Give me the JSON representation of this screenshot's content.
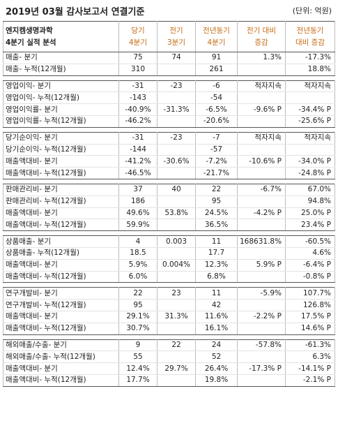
{
  "header": {
    "title": "2019년 03월 감사보고서 연결기준",
    "unit": "(단위: 억원)"
  },
  "columns": [
    {
      "line1": "엔지켐생명과학",
      "line2": "4분기 실적 분석"
    },
    {
      "line1": "당기",
      "line2": "4분기"
    },
    {
      "line1": "전기",
      "line2": "3분기"
    },
    {
      "line1": "전년동기",
      "line2": "4분기"
    },
    {
      "line1": "전기 대비",
      "line2": "증감"
    },
    {
      "line1": "전년동기",
      "line2": "대비 증감"
    }
  ],
  "groups": [
    {
      "rows": [
        {
          "label": "매출- 분기",
          "cur": "75",
          "prev": "74",
          "yoy": "91",
          "qoq": "1.3%",
          "yoyc": "-17.3%"
        },
        {
          "label": "매출- 누적(12개월)",
          "cur": "310",
          "prev": "",
          "yoy": "261",
          "qoq": "",
          "yoyc": "18.8%"
        }
      ]
    },
    {
      "rows": [
        {
          "label": "영업이익- 분기",
          "cur": "-31",
          "prev": "-23",
          "yoy": "-6",
          "qoq": "적자지속",
          "yoyc": "적자지속"
        },
        {
          "label": "영업이익- 누적(12개월)",
          "cur": "-143",
          "prev": "",
          "yoy": "-54",
          "qoq": "",
          "yoyc": ""
        },
        {
          "label": "영업이익률- 분기",
          "cur": "-40.9%",
          "prev": "-31.3%",
          "yoy": "-6.5%",
          "qoq": "-9.6% P",
          "yoyc": "-34.4% P"
        },
        {
          "label": "영업이익률- 누적(12개월)",
          "cur": "-46.2%",
          "prev": "",
          "yoy": "-20.6%",
          "qoq": "",
          "yoyc": "-25.6% P"
        }
      ]
    },
    {
      "rows": [
        {
          "label": "당기순이익- 분기",
          "cur": "-31",
          "prev": "-23",
          "yoy": "-7",
          "qoq": "적자지속",
          "yoyc": "적자지속"
        },
        {
          "label": "당기순이익- 누적(12개월)",
          "cur": "-144",
          "prev": "",
          "yoy": "-57",
          "qoq": "",
          "yoyc": ""
        },
        {
          "label": "매출액대비- 분기",
          "cur": "-41.2%",
          "prev": "-30.6%",
          "yoy": "-7.2%",
          "qoq": "-10.6% P",
          "yoyc": "-34.0% P"
        },
        {
          "label": "매출액대비- 누적(12개월)",
          "cur": "-46.5%",
          "prev": "",
          "yoy": "-21.7%",
          "qoq": "",
          "yoyc": "-24.8% P"
        }
      ]
    },
    {
      "rows": [
        {
          "label": "판매관리비- 분기",
          "cur": "37",
          "prev": "40",
          "yoy": "22",
          "qoq": "-6.7%",
          "yoyc": "67.0%"
        },
        {
          "label": "판매관리비- 누적(12개월)",
          "cur": "186",
          "prev": "",
          "yoy": "95",
          "qoq": "",
          "yoyc": "94.8%"
        },
        {
          "label": "매출액대비- 분기",
          "cur": "49.6%",
          "prev": "53.8%",
          "yoy": "24.5%",
          "qoq": "-4.2% P",
          "yoyc": "25.0% P"
        },
        {
          "label": "매출액대비- 누적(12개월)",
          "cur": "59.9%",
          "prev": "",
          "yoy": "36.5%",
          "qoq": "",
          "yoyc": "23.4% P"
        }
      ]
    },
    {
      "rows": [
        {
          "label": "상품매출- 분기",
          "cur": "4",
          "prev": "0.003",
          "yoy": "11",
          "qoq": "168631.8%",
          "yoyc": "-60.5%"
        },
        {
          "label": "상품매출- 누적(12개월)",
          "cur": "18.5",
          "prev": "",
          "yoy": "17.7",
          "qoq": "",
          "yoyc": "4.6%"
        },
        {
          "label": "매출액대비- 분기",
          "cur": "5.9%",
          "prev": "0.004%",
          "yoy": "12.3%",
          "qoq": "5.9% P",
          "yoyc": "-6.4% P"
        },
        {
          "label": "매출액대비- 누적(12개월)",
          "cur": "6.0%",
          "prev": "",
          "yoy": "6.8%",
          "qoq": "",
          "yoyc": "-0.8% P"
        }
      ]
    },
    {
      "rows": [
        {
          "label": "연구개발비- 분기",
          "cur": "22",
          "prev": "23",
          "yoy": "11",
          "qoq": "-5.9%",
          "yoyc": "107.7%"
        },
        {
          "label": "연구개발비- 누적(12개월)",
          "cur": "95",
          "prev": "",
          "yoy": "42",
          "qoq": "",
          "yoyc": "126.8%"
        },
        {
          "label": "매출액대비- 분기",
          "cur": "29.1%",
          "prev": "31.3%",
          "yoy": "11.6%",
          "qoq": "-2.2% P",
          "yoyc": "17.5% P"
        },
        {
          "label": "매출액대비- 누적(12개월)",
          "cur": "30.7%",
          "prev": "",
          "yoy": "16.1%",
          "qoq": "",
          "yoyc": "14.6% P"
        }
      ]
    },
    {
      "rows": [
        {
          "label": "해외매출/수출- 분기",
          "cur": "9",
          "prev": "22",
          "yoy": "24",
          "qoq": "-57.8%",
          "yoyc": "-61.3%"
        },
        {
          "label": "해외매출/수출- 누적(12개월)",
          "cur": "55",
          "prev": "",
          "yoy": "52",
          "qoq": "",
          "yoyc": "6.3%"
        },
        {
          "label": "매출액대비- 분기",
          "cur": "12.4%",
          "prev": "29.7%",
          "yoy": "26.4%",
          "qoq": "-17.3% P",
          "yoyc": "-14.1% P"
        },
        {
          "label": "매출액대비- 누적(12개월)",
          "cur": "17.7%",
          "prev": "",
          "yoy": "19.8%",
          "qoq": "",
          "yoyc": "-2.1% P"
        }
      ]
    }
  ]
}
